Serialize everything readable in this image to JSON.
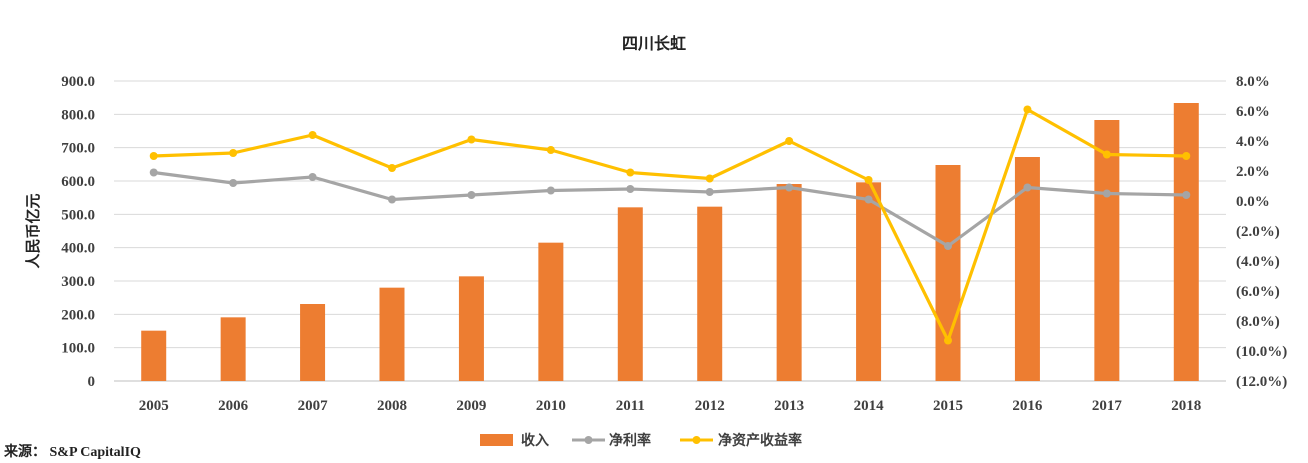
{
  "chart_data": {
    "type": "bar",
    "title": "四川长虹",
    "ylabel": "人民币亿元",
    "categories": [
      "2005",
      "2006",
      "2007",
      "2008",
      "2009",
      "2010",
      "2011",
      "2012",
      "2013",
      "2014",
      "2015",
      "2016",
      "2017",
      "2018"
    ],
    "series": [
      {
        "name": "收入",
        "type": "bar",
        "axis": "left",
        "color": "#ED7D31",
        "values": [
          151,
          191,
          231,
          280,
          314,
          415,
          521,
          523,
          591,
          596,
          648,
          672,
          783,
          834
        ]
      },
      {
        "name": "净利率",
        "type": "line",
        "axis": "right",
        "color": "#A5A5A5",
        "values": [
          1.9,
          1.2,
          1.6,
          0.1,
          0.4,
          0.7,
          0.8,
          0.6,
          0.9,
          0.1,
          -3.0,
          0.9,
          0.5,
          0.4
        ]
      },
      {
        "name": "净资产收益率",
        "type": "line",
        "axis": "right",
        "color": "#FFC000",
        "values": [
          3.0,
          3.2,
          4.4,
          2.2,
          4.1,
          3.4,
          1.9,
          1.5,
          4.0,
          1.4,
          -9.3,
          6.1,
          3.1,
          3.0
        ]
      }
    ],
    "y_left": {
      "range": [
        0,
        900
      ],
      "ticks": [
        "0",
        "100.0",
        "200.0",
        "300.0",
        "400.0",
        "500.0",
        "600.0",
        "700.0",
        "800.0",
        "900.0"
      ]
    },
    "y_right": {
      "unit": "%",
      "range": [
        -12,
        8
      ],
      "ticks": [
        "(12.0%)",
        "(10.0%)",
        "(8.0%)",
        "(6.0%)",
        "(4.0%)",
        "(2.0%)",
        "0.0%",
        "2.0%",
        "4.0%",
        "6.0%",
        "8.0%"
      ]
    },
    "grid": true,
    "legend_position": "bottom"
  },
  "source": "来源： S&P CapitalIQ"
}
